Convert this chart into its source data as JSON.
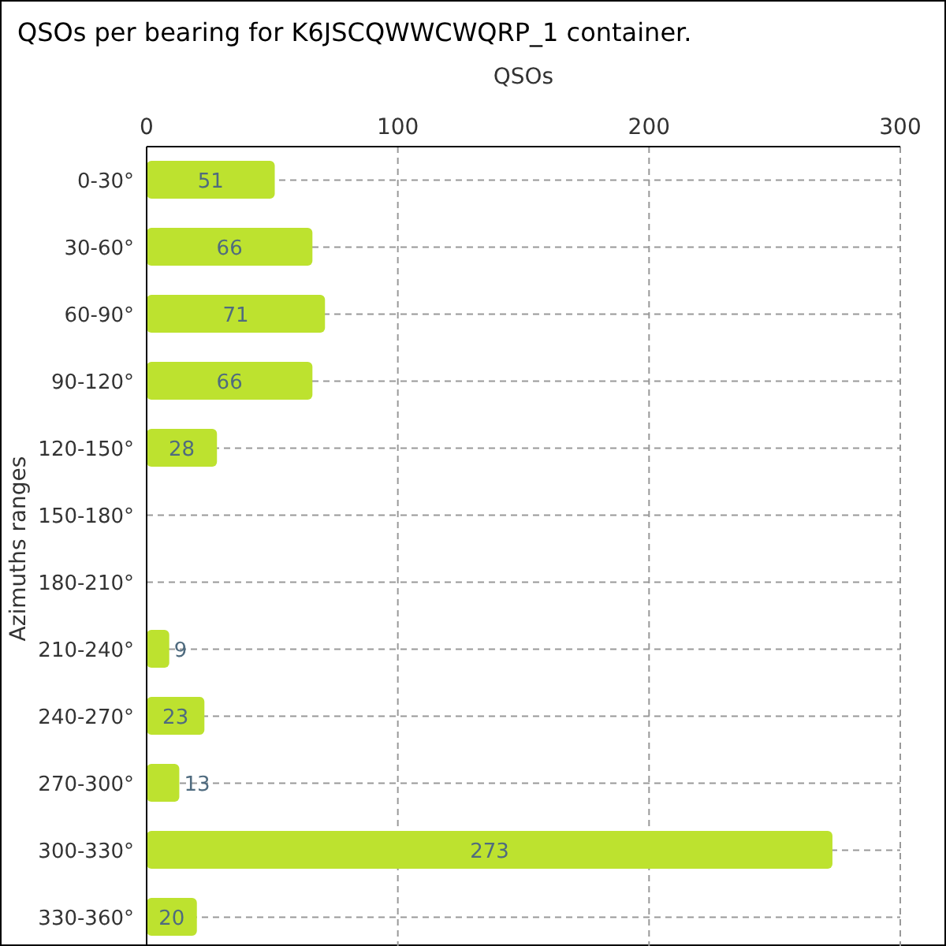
{
  "chart_data": {
    "type": "bar",
    "orientation": "horizontal",
    "title": "QSOs per bearing for K6JSCQWWCWQRP_1 container.",
    "xlabel": "QSOs",
    "ylabel": "Azimuths ranges",
    "categories": [
      "0-30°",
      "30-60°",
      "60-90°",
      "90-120°",
      "120-150°",
      "150-180°",
      "180-210°",
      "210-240°",
      "240-270°",
      "270-300°",
      "300-330°",
      "330-360°"
    ],
    "values": [
      51,
      66,
      71,
      66,
      28,
      null,
      null,
      9,
      23,
      13,
      273,
      20
    ],
    "color": "#bde22f",
    "xlim": [
      0,
      300
    ],
    "xticks": [
      0,
      100,
      200,
      300
    ],
    "grid": true,
    "data_labels": true
  }
}
